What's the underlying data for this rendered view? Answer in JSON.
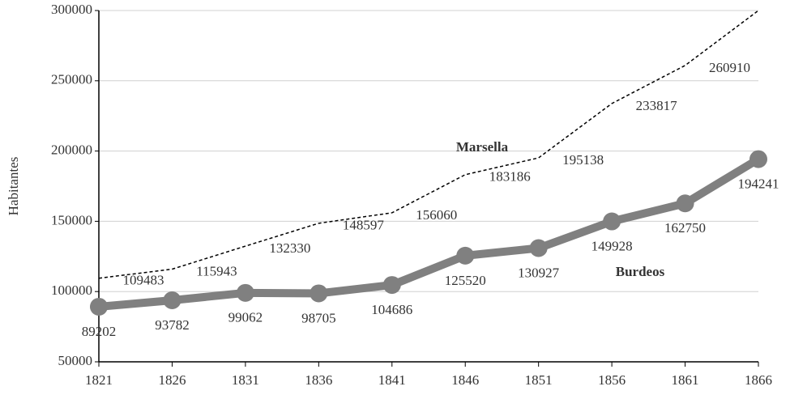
{
  "chart_data": {
    "type": "line",
    "y_label": "Habitantes",
    "x": [
      1821,
      1826,
      1831,
      1836,
      1841,
      1846,
      1851,
      1856,
      1861,
      1866
    ],
    "xlim": [
      1821,
      1866
    ],
    "xticks": [
      1821,
      1826,
      1831,
      1836,
      1841,
      1846,
      1851,
      1856,
      1861,
      1866
    ],
    "ylim": [
      50000,
      300000
    ],
    "yticks": [
      50000,
      100000,
      150000,
      200000,
      250000,
      300000
    ],
    "grid": true,
    "series": [
      {
        "name": "Marsella",
        "color": "#000000",
        "values": [
          109483,
          115943,
          132330,
          148597,
          156060,
          183186,
          195138,
          233817,
          260910,
          300000
        ],
        "value_labels": [
          "109483",
          "115943",
          "132330",
          "148597",
          "156060",
          "183186",
          "195138",
          "233817",
          "260910",
          null
        ]
      },
      {
        "name": "Burdeos",
        "color": "#808080",
        "values": [
          89202,
          93782,
          99062,
          98705,
          104686,
          125520,
          130927,
          149928,
          162750,
          194241
        ]
      }
    ]
  }
}
